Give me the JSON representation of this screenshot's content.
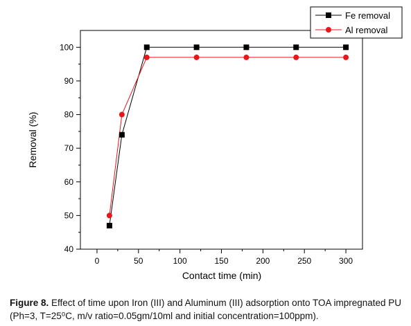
{
  "chart_data": {
    "type": "line",
    "xlabel": "Contact time (min)",
    "ylabel": "Removal (%)",
    "xlim": [
      -20,
      320
    ],
    "ylim": [
      40,
      105
    ],
    "xticks": [
      0,
      50,
      100,
      150,
      200,
      250,
      300
    ],
    "yticks": [
      40,
      50,
      60,
      70,
      80,
      90,
      100
    ],
    "grid": false,
    "legend_position": "top-right",
    "series": [
      {
        "name": "Fe removal",
        "color": "#000000",
        "marker": "square",
        "x": [
          15,
          30,
          60,
          120,
          180,
          240,
          300
        ],
        "y": [
          47,
          74,
          100,
          100,
          100,
          100,
          100
        ]
      },
      {
        "name": "Al removal",
        "color": "#e8151b",
        "marker": "circle",
        "x": [
          15,
          30,
          60,
          120,
          180,
          240,
          300
        ],
        "y": [
          50,
          80,
          97,
          97,
          97,
          97,
          97
        ]
      }
    ]
  },
  "caption": {
    "label": "Figure 8.",
    "text": " Effect of time upon Iron (III) and Aluminum (III) adsorption onto TOA impregnated PU (Ph=3, T=25⁰C, m/v ratio=0.05gm/10ml and initial concentration=100ppm)."
  }
}
